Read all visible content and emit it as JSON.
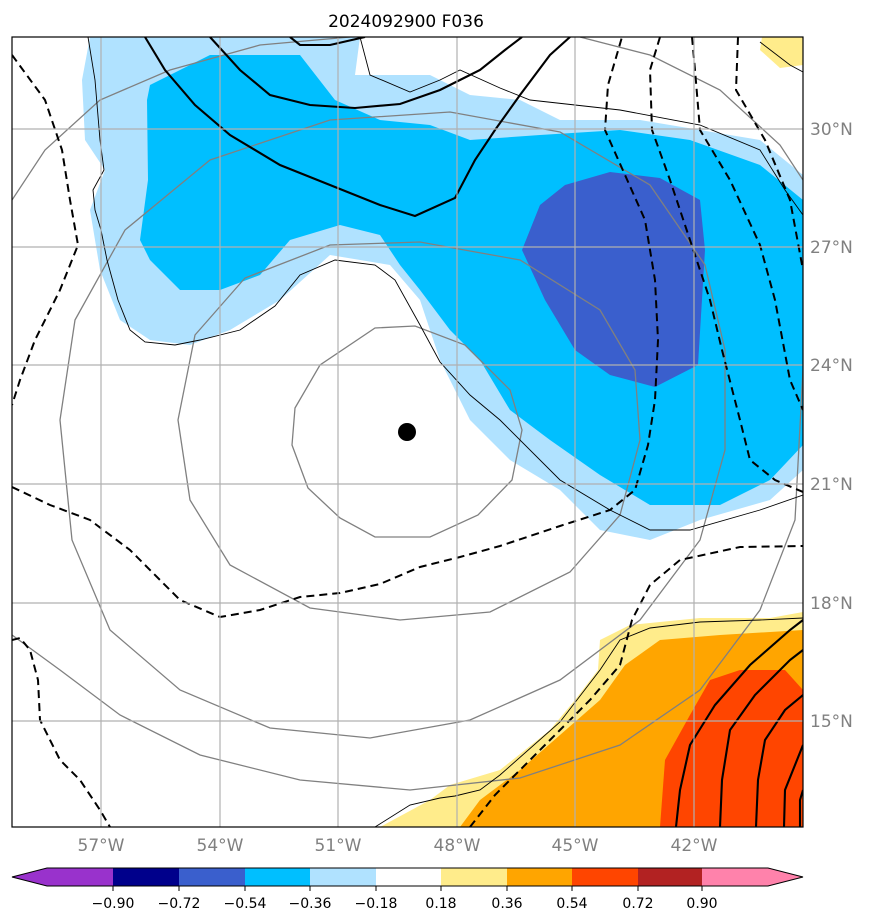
{
  "title": "2024092900 F036",
  "lon_labels": [
    "57°W",
    "54°W",
    "51°W",
    "48°W",
    "45°W",
    "42°W"
  ],
  "lat_labels": [
    "30°N",
    "27°N",
    "24°N",
    "21°N",
    "18°N",
    "15°N"
  ],
  "map": {
    "lon_range": [
      -59.2,
      -39.3
    ],
    "lat_range": [
      12.9,
      32.3
    ],
    "gridline_color": "#b0b0b0",
    "storm_center": {
      "lon": -49.2,
      "lat": 22.3
    }
  },
  "colorbar": {
    "ticks": [
      "−0.90",
      "−0.72",
      "−0.54",
      "−0.36",
      "−0.18",
      "0.18",
      "0.36",
      "0.54",
      "0.72",
      "0.90"
    ],
    "colors": [
      "#9932cc",
      "#00008b",
      "#3a5fcd",
      "#00bfff",
      "#b0e2ff",
      "#ffffff",
      "#ffec8b",
      "#ffa500",
      "#ff4500",
      "#b22222",
      "#ff82ab"
    ]
  }
}
